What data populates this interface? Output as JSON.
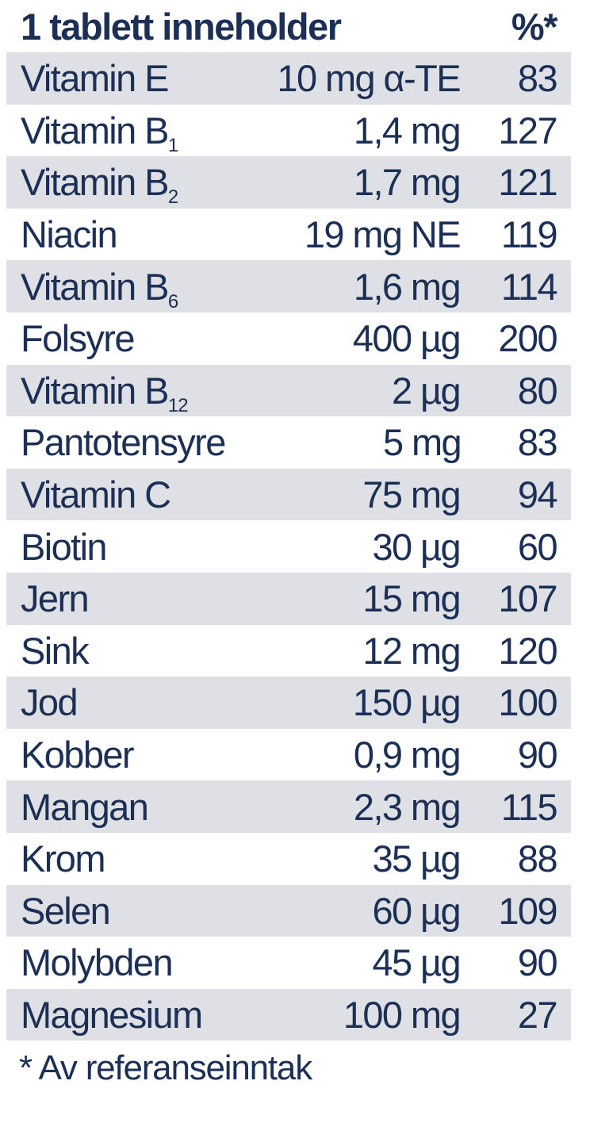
{
  "header": {
    "title": "1 tablett inneholder",
    "percent_label": "%*"
  },
  "rows": [
    {
      "name": "Vitamin E",
      "sub": "",
      "amount": "10 mg α-TE",
      "percent": "83"
    },
    {
      "name": "Vitamin B",
      "sub": "1",
      "amount": "1,4 mg",
      "percent": "127"
    },
    {
      "name": "Vitamin B",
      "sub": "2",
      "amount": "1,7 mg",
      "percent": "121"
    },
    {
      "name": "Niacin",
      "sub": "",
      "amount": "19 mg NE",
      "percent": "119"
    },
    {
      "name": "Vitamin B",
      "sub": "6",
      "amount": "1,6 mg",
      "percent": "114"
    },
    {
      "name": "Folsyre",
      "sub": "",
      "amount": "400 µg",
      "percent": "200"
    },
    {
      "name": "Vitamin B",
      "sub": "12",
      "amount": "2 µg",
      "percent": "80"
    },
    {
      "name": "Pantotensyre",
      "sub": "",
      "amount": "5 mg",
      "percent": "83"
    },
    {
      "name": "Vitamin C",
      "sub": "",
      "amount": "75 mg",
      "percent": "94"
    },
    {
      "name": "Biotin",
      "sub": "",
      "amount": "30 µg",
      "percent": "60"
    },
    {
      "name": "Jern",
      "sub": "",
      "amount": "15 mg",
      "percent": "107"
    },
    {
      "name": "Sink",
      "sub": "",
      "amount": "12 mg",
      "percent": "120"
    },
    {
      "name": "Jod",
      "sub": "",
      "amount": "150 µg",
      "percent": "100"
    },
    {
      "name": "Kobber",
      "sub": "",
      "amount": "0,9 mg",
      "percent": "90"
    },
    {
      "name": "Mangan",
      "sub": "",
      "amount": "2,3 mg",
      "percent": "115"
    },
    {
      "name": "Krom",
      "sub": "",
      "amount": "35 µg",
      "percent": "88"
    },
    {
      "name": "Selen",
      "sub": "",
      "amount": "60 µg",
      "percent": "109"
    },
    {
      "name": "Molybden",
      "sub": "",
      "amount": "45 µg",
      "percent": "90"
    },
    {
      "name": "Magnesium",
      "sub": "",
      "amount": "100 mg",
      "percent": "27"
    }
  ],
  "footnote": "* Av referanseinntak",
  "colors": {
    "text": "#1c2f55",
    "stripe": "#dfe0e6",
    "background": "#ffffff"
  }
}
